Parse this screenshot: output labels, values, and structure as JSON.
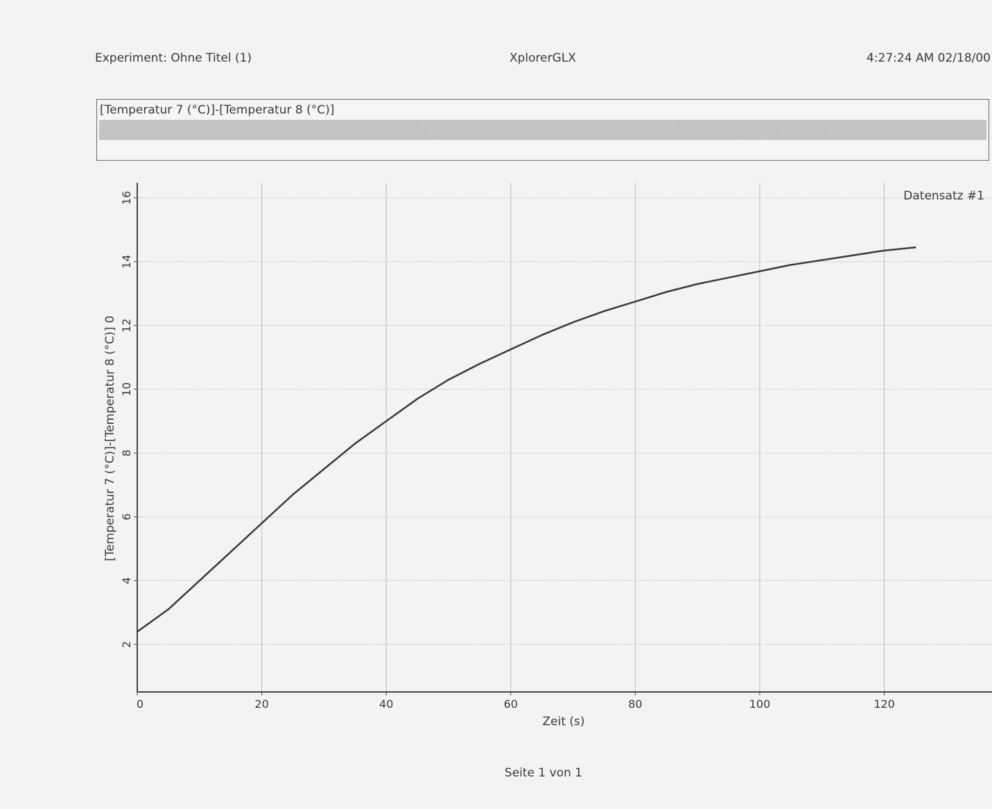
{
  "header": {
    "experiment": "Experiment: Ohne Titel (1)",
    "app": "XplorerGLX",
    "timestamp": "4:27:24 AM  02/18/00"
  },
  "legend": {
    "label": "[Temperatur 7 (°C)]-[Temperatur 8 (°C)]"
  },
  "footer": {
    "page": "Seite 1 von 1"
  },
  "colors": {
    "line": "#3a3a3a",
    "grid": "#bdbdbd",
    "axis": "#444444"
  },
  "chart_data": {
    "type": "line",
    "title": "",
    "xlabel": "Zeit (s)",
    "ylabel": "[Temperatur 7 (°C)]-[Temperatur 8 (°C)] 0",
    "xlim": [
      0,
      137
    ],
    "ylim": [
      0.4,
      16.4
    ],
    "xticks": [
      0,
      20,
      40,
      60,
      80,
      100,
      120
    ],
    "yticks": [
      2,
      4,
      6,
      8,
      10,
      12,
      14,
      16
    ],
    "grid": true,
    "dataset_label": "Datensatz #1",
    "series": [
      {
        "x": [
          0,
          5,
          10,
          15,
          20,
          25,
          30,
          35,
          40,
          45,
          50,
          55,
          60,
          65,
          70,
          75,
          80,
          85,
          90,
          95,
          100,
          105,
          110,
          115,
          120,
          125
        ],
        "y": [
          2.4,
          3.1,
          4.0,
          4.9,
          5.8,
          6.7,
          7.5,
          8.3,
          9.0,
          9.7,
          10.3,
          10.8,
          11.25,
          11.7,
          12.1,
          12.45,
          12.75,
          13.05,
          13.3,
          13.5,
          13.7,
          13.9,
          14.05,
          14.2,
          14.35,
          14.45
        ]
      }
    ]
  }
}
